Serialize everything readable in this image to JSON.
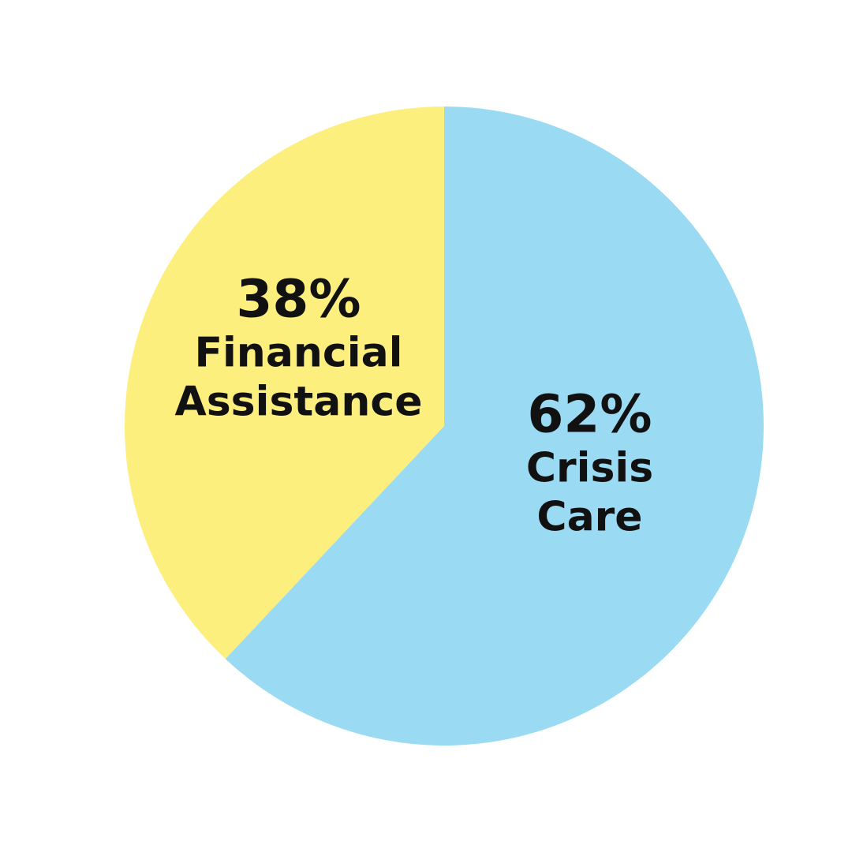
{
  "chart_data": {
    "type": "pie",
    "categories": [
      "Crisis Care",
      "Financial Assistance"
    ],
    "values": [
      62,
      38
    ],
    "value_labels": [
      "62%",
      "38%"
    ],
    "colors": [
      "#9adbf3",
      "#fcef7e"
    ]
  }
}
